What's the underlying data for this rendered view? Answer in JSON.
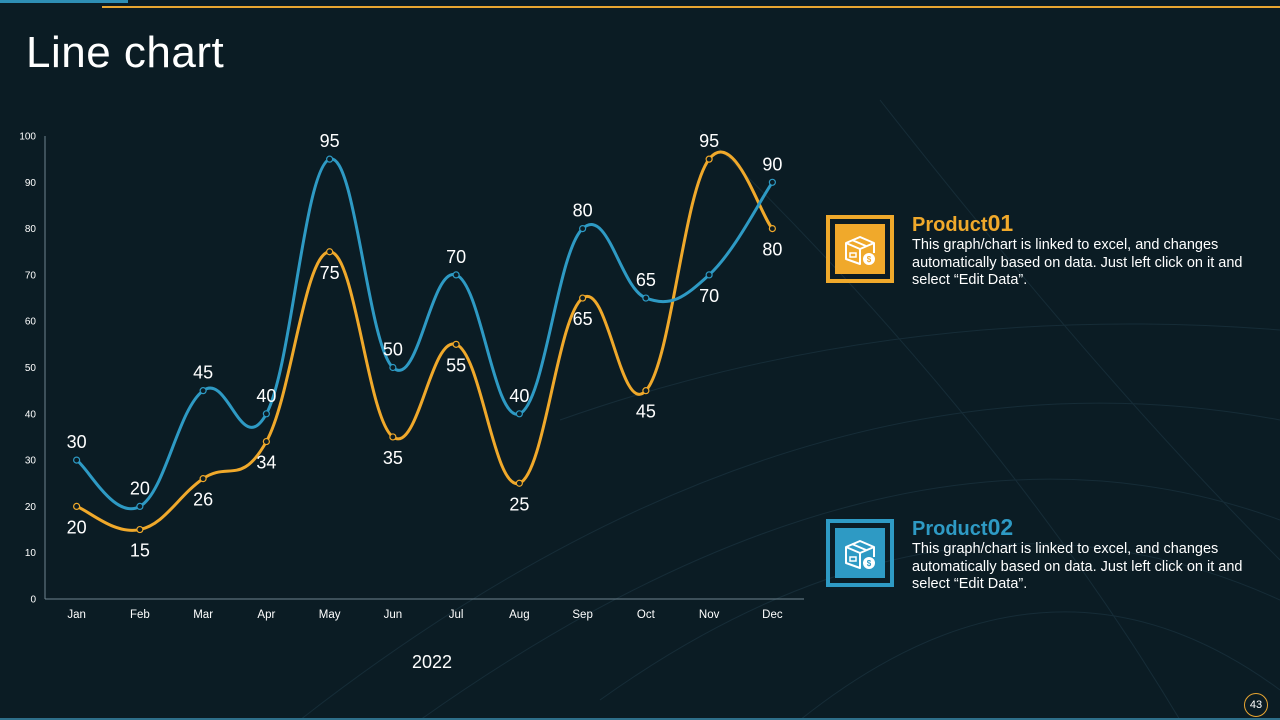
{
  "page": {
    "title": "Line chart",
    "page_number": "43"
  },
  "colors": {
    "background": "#0b1c24",
    "series_blue": "#2e9ac4",
    "series_gold": "#f0a92b",
    "axis": "#6f8591"
  },
  "icons": {
    "legend_icon": "box-with-dollar-icon"
  },
  "chart_data": {
    "type": "line",
    "categories": [
      "Jan",
      "Feb",
      "Mar",
      "Apr",
      "May",
      "Jun",
      "Jul",
      "Aug",
      "Sep",
      "Oct",
      "Nov",
      "Dec"
    ],
    "series": [
      {
        "name": "Product 01",
        "color": "#f0a92b",
        "values": [
          20,
          15,
          26,
          34,
          75,
          35,
          55,
          25,
          65,
          45,
          95,
          80
        ]
      },
      {
        "name": "Product 02",
        "color": "#2e9ac4",
        "values": [
          30,
          20,
          45,
          40,
          95,
          50,
          70,
          40,
          80,
          65,
          70,
          90
        ]
      }
    ],
    "xlabel": "2022",
    "ylim": [
      0,
      100
    ],
    "yticks": [
      0,
      10,
      20,
      30,
      40,
      50,
      60,
      70,
      80,
      90,
      100
    ],
    "smooth": true,
    "data_labels": true,
    "grid": false,
    "legend": "right"
  },
  "legend": [
    {
      "label": "Product",
      "number": "01",
      "description": "This graph/chart is linked to excel, and changes automatically based on data. Just left click on it and select “Edit Data”."
    },
    {
      "label": "Product",
      "number": "02",
      "description": "This graph/chart is linked to excel, and changes automatically based on data. Just left click on it and select “Edit Data”."
    }
  ]
}
